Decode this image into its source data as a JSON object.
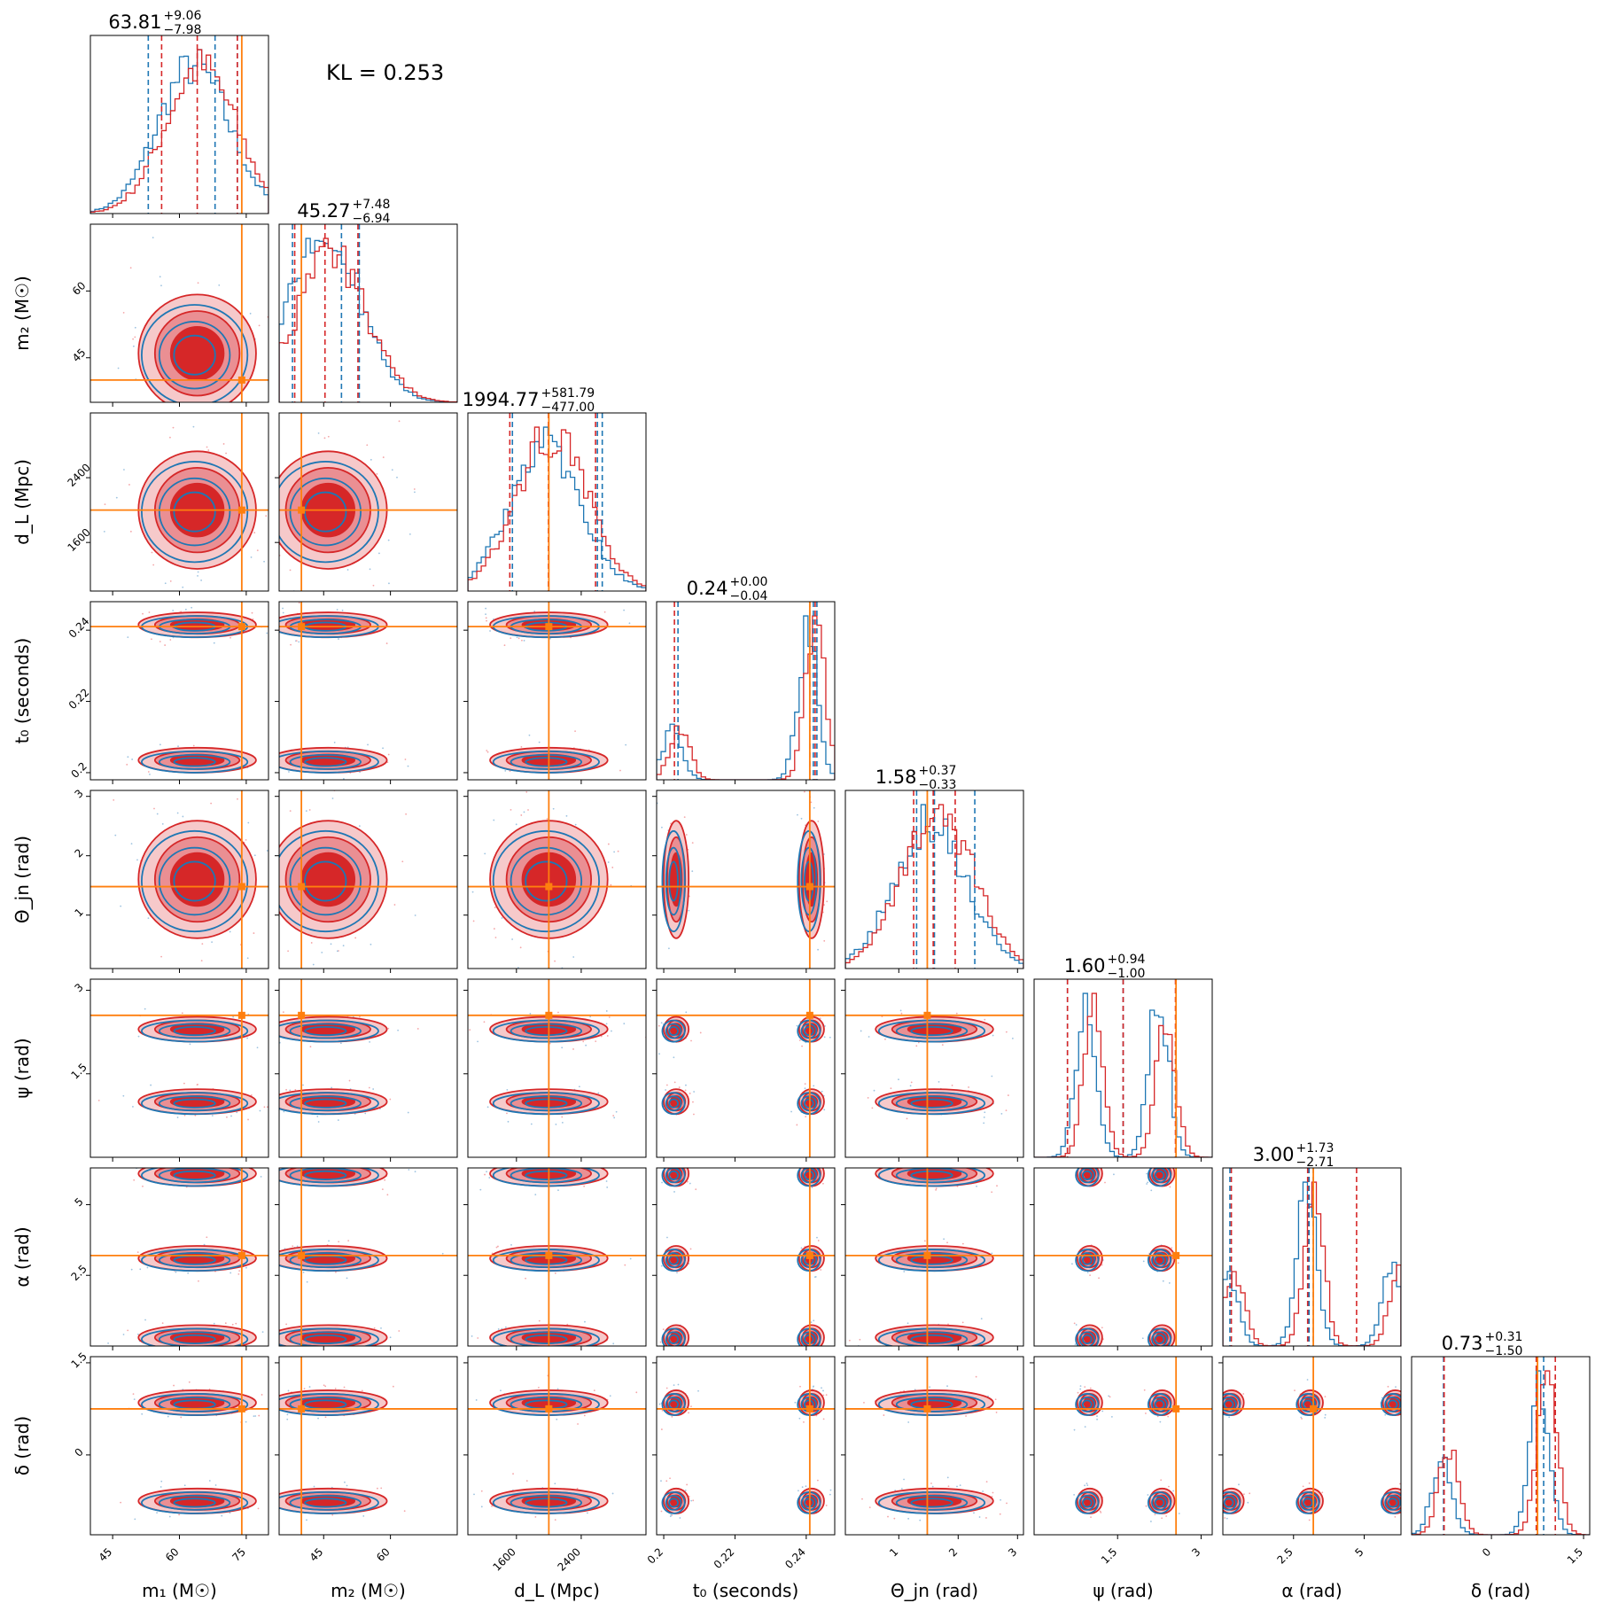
{
  "chart_data": {
    "type": "corner",
    "annotation": "KL = 0.253",
    "colors": {
      "blue": "#1f77b4",
      "red": "#d62728",
      "truth": "#ff7f0e",
      "red_fill_light": "#f6c9ca",
      "red_fill_mid": "#ea8f93"
    },
    "params": [
      {
        "label": "m₁ (M☉)",
        "latex": "m_1 (M_⊙)",
        "range": [
          40,
          80
        ],
        "ticks": [
          45,
          60,
          75
        ],
        "truth": 74,
        "median": 63.81,
        "plus": "9.06",
        "minus": "7.98",
        "title": "63.81",
        "plus_label": "+9.06",
        "minus_label": "−7.98",
        "q_blue": [
          53,
          68,
          73
        ],
        "q_red": [
          56,
          64,
          73
        ]
      },
      {
        "label": "m₂ (M☉)",
        "latex": "m_2 (M_⊙)",
        "range": [
          35,
          75
        ],
        "ticks": [
          45,
          60
        ],
        "truth": 40,
        "median": 45.27,
        "plus": "7.48",
        "minus": "6.94",
        "title": "45.27",
        "plus_label": "+7.48",
        "minus_label": "−6.94",
        "q_blue": [
          38,
          49,
          53
        ],
        "q_red": [
          38.5,
          45.3,
          52.7
        ]
      },
      {
        "label": "d_L (Mpc)",
        "latex": "d_L (Mpc)",
        "range": [
          1000,
          3200
        ],
        "ticks": [
          1600,
          2400
        ],
        "truth": 2000,
        "median": 1994.77,
        "plus": "581.79",
        "minus": "477.00",
        "title": "1994.77",
        "plus_label": "+581.79",
        "minus_label": "−477.00",
        "q_blue": [
          1550,
          2600,
          2660
        ],
        "q_red": [
          1518,
          1995,
          2577
        ]
      },
      {
        "label": "t₀ (seconds)",
        "latex": "t_0 (seconds)",
        "range": [
          0.198,
          0.248
        ],
        "ticks": [
          0.2,
          0.22,
          0.24
        ],
        "truth": 0.241,
        "median": 0.24,
        "plus": "0.00",
        "minus": "0.04",
        "title": "0.24",
        "plus_label": "+0.00",
        "minus_label": "−0.04",
        "q_blue": [
          0.204,
          0.242,
          0.243
        ],
        "q_red": [
          0.203,
          0.241,
          0.2425
        ]
      },
      {
        "label": "Θ_jn (rad)",
        "latex": "Θ_{jn} (rad)",
        "range": [
          0.1,
          3.1
        ],
        "ticks": [
          1,
          2,
          3
        ],
        "truth": 1.48,
        "median": 1.58,
        "plus": "0.37",
        "minus": "0.33",
        "title": "1.58",
        "plus_label": "+0.37",
        "minus_label": "−0.33",
        "q_blue": [
          1.3,
          1.6,
          2.28
        ],
        "q_red": [
          1.25,
          1.58,
          1.95
        ]
      },
      {
        "label": "ψ (rad)",
        "latex": "ψ (rad)",
        "range": [
          0,
          3.2
        ],
        "ticks": [
          1.5,
          3.0
        ],
        "truth": 2.55,
        "median": 1.6,
        "plus": "0.94",
        "minus": "1.00",
        "title": "1.60",
        "plus_label": "+0.94",
        "minus_label": "−1.00",
        "q_blue": [
          0.6,
          1.6,
          2.55
        ],
        "q_red": [
          0.6,
          1.6,
          2.54
        ]
      },
      {
        "label": "α (rad)",
        "latex": "α (rad)",
        "range": [
          0,
          6.3
        ],
        "ticks": [
          2.5,
          5.0
        ],
        "truth": 3.2,
        "median": 3.0,
        "plus": "1.73",
        "minus": "2.71",
        "title": "3.00",
        "plus_label": "+1.73",
        "minus_label": "−2.71",
        "q_blue": [
          0.25,
          3.05,
          3.2
        ],
        "q_red": [
          0.3,
          3.0,
          4.73
        ]
      },
      {
        "label": "δ (rad)",
        "latex": "δ (rad)",
        "range": [
          -1.3,
          1.6
        ],
        "ticks": [
          0.0,
          1.5
        ],
        "truth": 0.75,
        "median": 0.73,
        "plus": "0.31",
        "minus": "1.50",
        "title": "0.73",
        "plus_label": "+0.31",
        "minus_label": "−1.50",
        "q_blue": [
          -0.78,
          0.75,
          0.85
        ],
        "q_red": [
          -0.77,
          0.73,
          1.04
        ]
      }
    ],
    "modes": [
      [
        {
          "c": 64,
          "w": 0.7
        }
      ],
      [
        {
          "c": 46,
          "w": 0.7
        }
      ],
      [
        {
          "c": 2000,
          "w": 0.7
        }
      ],
      [
        {
          "c": 0.2035,
          "w": 0.25
        },
        {
          "c": 0.2415,
          "w": 0.75
        }
      ],
      [
        {
          "c": 1.6,
          "w": 0.7
        }
      ],
      [
        {
          "c": 1.0,
          "w": 0.5
        },
        {
          "c": 2.3,
          "w": 0.5
        }
      ],
      [
        {
          "c": 3.1,
          "w": 0.5
        },
        {
          "c": 0.3,
          "w": 0.25
        },
        {
          "c": 6.1,
          "w": 0.25
        }
      ],
      [
        {
          "c": -0.75,
          "w": 0.35
        },
        {
          "c": 0.85,
          "w": 0.65
        }
      ]
    ]
  }
}
